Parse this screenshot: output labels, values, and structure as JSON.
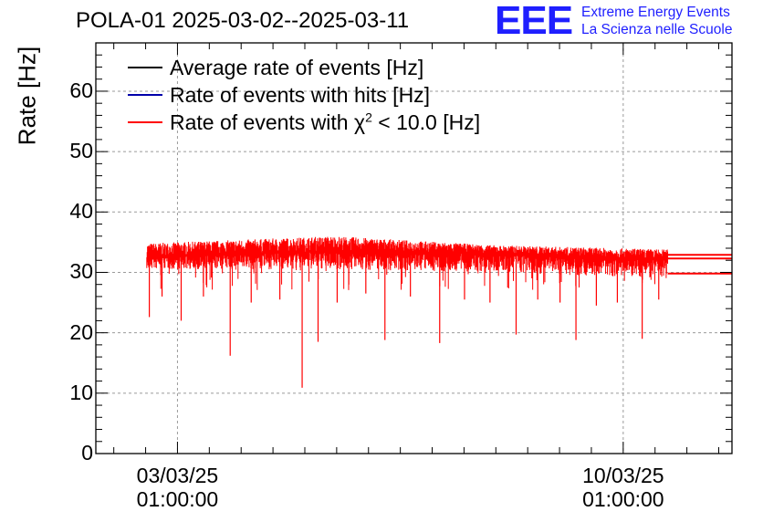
{
  "title": "POLA-01 2025-03-02--2025-03-11",
  "logo": {
    "text": "EEE",
    "line1": "Extreme Energy Events",
    "line2": "La Scienza nelle Scuole"
  },
  "chart_data": {
    "type": "line",
    "title": "POLA-01 2025-03-02--2025-03-11",
    "ylabel": "Rate [Hz]",
    "xlabel": "",
    "ylim": [
      0,
      68
    ],
    "yticks": [
      0,
      10,
      20,
      30,
      40,
      50,
      60
    ],
    "ytick_labels": [
      "0",
      "10",
      "20",
      "30",
      "40",
      "50",
      "60"
    ],
    "x_unit": "days since 2025-03-02 00:00",
    "xlim": [
      -0.24,
      9.75
    ],
    "xticks": [
      {
        "x": 1.042,
        "line1": "03/03/25",
        "line2": "01:00:00"
      },
      {
        "x": 8.042,
        "line1": "10/03/25",
        "line2": "01:00:00"
      }
    ],
    "grid": true,
    "legend_position": "top-left",
    "legend": [
      {
        "label": "Average rate of events [Hz]",
        "color": "#000000"
      },
      {
        "label": "Rate of events with hits [Hz]",
        "color": "#0000aa"
      },
      {
        "label_main": "Rate of events with ",
        "label_symbol": "χ",
        "label_sup": "2",
        "label_tail": " < 10.0 [Hz]",
        "color": "#ff0000"
      }
    ],
    "series": [
      {
        "name": "Average rate of events [Hz]",
        "color": "#000000",
        "x_range": [
          0.56,
          8.74
        ],
        "mean": 32.5
      },
      {
        "name": "Rate of events with hits [Hz]",
        "color": "#0000aa",
        "x_range": [
          0.56,
          8.74
        ],
        "mean": 32.5
      },
      {
        "name": "Rate of events with chi2 < 10.0 [Hz]",
        "color": "#ff0000",
        "x_range": [
          0.56,
          8.74
        ],
        "trend": [
          [
            0.56,
            32.5
          ],
          [
            3.5,
            33.5
          ],
          [
            6.0,
            33.0
          ],
          [
            8.74,
            32.0
          ]
        ],
        "band_top": [
          [
            0.56,
            34.8
          ],
          [
            3.5,
            36.0
          ],
          [
            6.0,
            34.5
          ],
          [
            8.74,
            33.8
          ]
        ],
        "band_bottom": [
          [
            0.56,
            30.5
          ],
          [
            3.5,
            30.5
          ],
          [
            6.0,
            30.0
          ],
          [
            8.74,
            29.0
          ]
        ],
        "dips": [
          {
            "x": 0.6,
            "y": 22.6
          },
          {
            "x": 0.8,
            "y": 26.0
          },
          {
            "x": 1.1,
            "y": 22.0
          },
          {
            "x": 1.45,
            "y": 26.0
          },
          {
            "x": 1.87,
            "y": 16.2
          },
          {
            "x": 2.2,
            "y": 25.0
          },
          {
            "x": 2.65,
            "y": 25.5
          },
          {
            "x": 3.0,
            "y": 10.9
          },
          {
            "x": 3.25,
            "y": 18.5
          },
          {
            "x": 3.55,
            "y": 25.0
          },
          {
            "x": 4.0,
            "y": 26.5
          },
          {
            "x": 4.3,
            "y": 18.8
          },
          {
            "x": 4.7,
            "y": 26.0
          },
          {
            "x": 5.16,
            "y": 18.3
          },
          {
            "x": 5.55,
            "y": 25.5
          },
          {
            "x": 5.95,
            "y": 25.0
          },
          {
            "x": 6.36,
            "y": 19.7
          },
          {
            "x": 6.7,
            "y": 25.5
          },
          {
            "x": 7.05,
            "y": 25.0
          },
          {
            "x": 7.3,
            "y": 18.8
          },
          {
            "x": 7.62,
            "y": 24.5
          },
          {
            "x": 7.95,
            "y": 25.0
          },
          {
            "x": 8.34,
            "y": 19.0
          },
          {
            "x": 8.6,
            "y": 25.5
          }
        ],
        "tail": {
          "x_range": [
            8.74,
            9.75
          ],
          "values": [
            29.8,
            32.3,
            32.9
          ]
        }
      }
    ]
  }
}
